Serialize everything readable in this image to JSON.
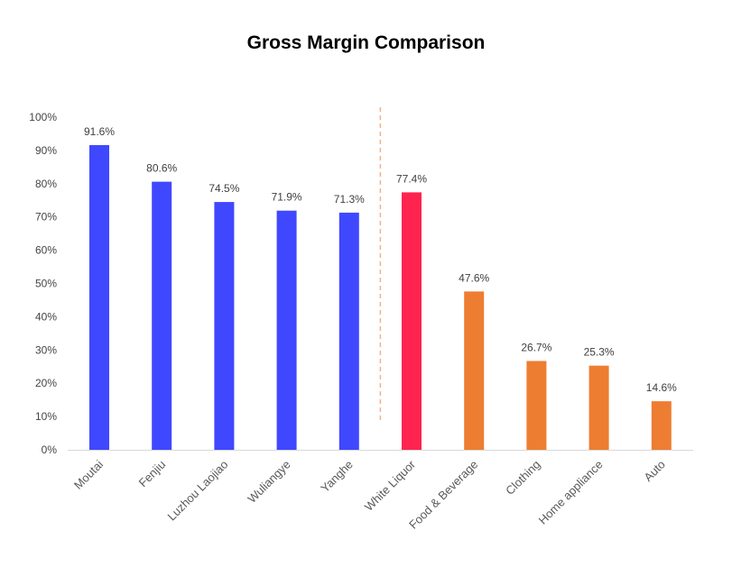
{
  "chart_data": {
    "type": "bar",
    "title": "Gross Margin Comparison",
    "xlabel": "",
    "ylabel": "",
    "ylim": [
      0,
      100
    ],
    "y_ticks": [
      "0%",
      "10%",
      "20%",
      "30%",
      "40%",
      "50%",
      "60%",
      "70%",
      "80%",
      "90%",
      "100%"
    ],
    "categories": [
      "Moutai",
      "Fenjiu",
      "Luzhou Laojiao",
      "Wuliangye",
      "Yanghe",
      "White Liquor",
      "Food & Beverage",
      "Clothing",
      "Home appliance",
      "Auto"
    ],
    "values": [
      91.6,
      80.6,
      74.5,
      71.9,
      71.3,
      77.4,
      47.6,
      26.7,
      25.3,
      14.6
    ],
    "data_labels": [
      "91.6%",
      "80.6%",
      "74.5%",
      "71.9%",
      "71.3%",
      "77.4%",
      "47.6%",
      "26.7%",
      "25.3%",
      "14.6%"
    ],
    "bar_colors": [
      "#3f48ff",
      "#3f48ff",
      "#3f48ff",
      "#3f48ff",
      "#3f48ff",
      "#ff2450",
      "#ed7d31",
      "#ed7d31",
      "#ed7d31",
      "#ed7d31"
    ],
    "separator": {
      "style": "dashed",
      "color": "#f4b183",
      "between": [
        "Yanghe",
        "White Liquor"
      ]
    },
    "grid": false,
    "legend": "none"
  }
}
